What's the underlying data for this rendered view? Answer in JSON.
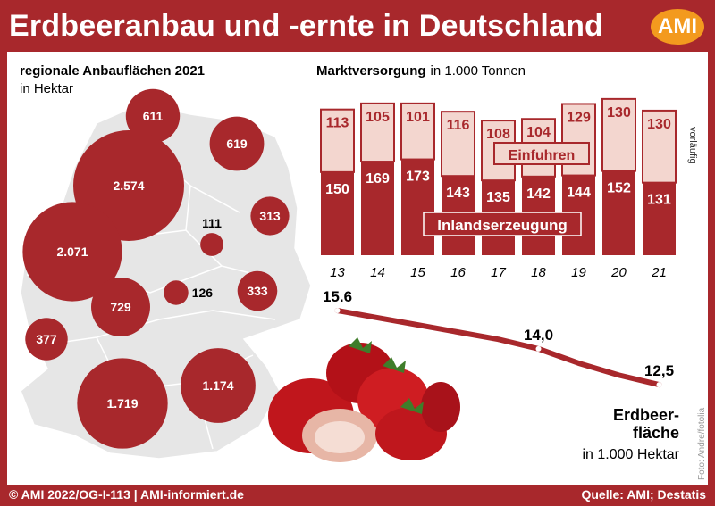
{
  "header": {
    "title": "Erdbeeranbau und -ernte in Deutschland",
    "logo_text": "AMI"
  },
  "footer": {
    "copyright": "© AMI 2022/OG-I-113 | AMI-informiert.de",
    "source": "Quelle: AMI; Destatis"
  },
  "colors": {
    "brand_red": "#a8282c",
    "import_pink": "#f3d6cf",
    "logo_orange": "#f39a1e",
    "map_gray": "#e6e6e6"
  },
  "photo_credit": "Foto: Andre/fotolia",
  "chart_data": [
    {
      "type": "bubble-map",
      "title": "regionale Anbauflächen 2021",
      "unit": "in Hektar",
      "values": [
        {
          "label": "611",
          "value": 611
        },
        {
          "label": "619",
          "value": 619
        },
        {
          "label": "2.574",
          "value": 2574
        },
        {
          "label": "111",
          "value": 111
        },
        {
          "label": "313",
          "value": 313
        },
        {
          "label": "2.071",
          "value": 2071
        },
        {
          "label": "126",
          "value": 126
        },
        {
          "label": "333",
          "value": 333
        },
        {
          "label": "729",
          "value": 729
        },
        {
          "label": "377",
          "value": 377
        },
        {
          "label": "1.174",
          "value": 1174
        },
        {
          "label": "1.719",
          "value": 1719
        }
      ]
    },
    {
      "type": "bar",
      "stacked": true,
      "title": "Marktversorgung",
      "unit": "in 1.000 Tonnen",
      "categories": [
        "13",
        "14",
        "15",
        "16",
        "17",
        "18",
        "19",
        "20",
        "21"
      ],
      "series": [
        {
          "name": "Inlandserzeugung",
          "values": [
            150,
            169,
            173,
            143,
            135,
            142,
            144,
            152,
            131
          ]
        },
        {
          "name": "Einfuhren",
          "values": [
            113,
            105,
            101,
            116,
            108,
            104,
            129,
            130,
            130
          ]
        }
      ],
      "annotation": "vorläufig"
    },
    {
      "type": "line",
      "title": "Erdbeer-fläche",
      "title_line1": "Erdbeer-",
      "title_line2": "fläche",
      "unit": "in 1.000 Hektar",
      "x": [
        "13",
        "14",
        "15",
        "16",
        "17",
        "18",
        "19",
        "20",
        "21"
      ],
      "values": [
        15.6,
        15.3,
        15.0,
        14.7,
        14.4,
        14.0,
        13.4,
        12.9,
        12.5
      ],
      "labels": [
        {
          "index": 0,
          "text": "15.6"
        },
        {
          "index": 5,
          "text": "14,0"
        },
        {
          "index": 8,
          "text": "12,5"
        }
      ]
    }
  ]
}
